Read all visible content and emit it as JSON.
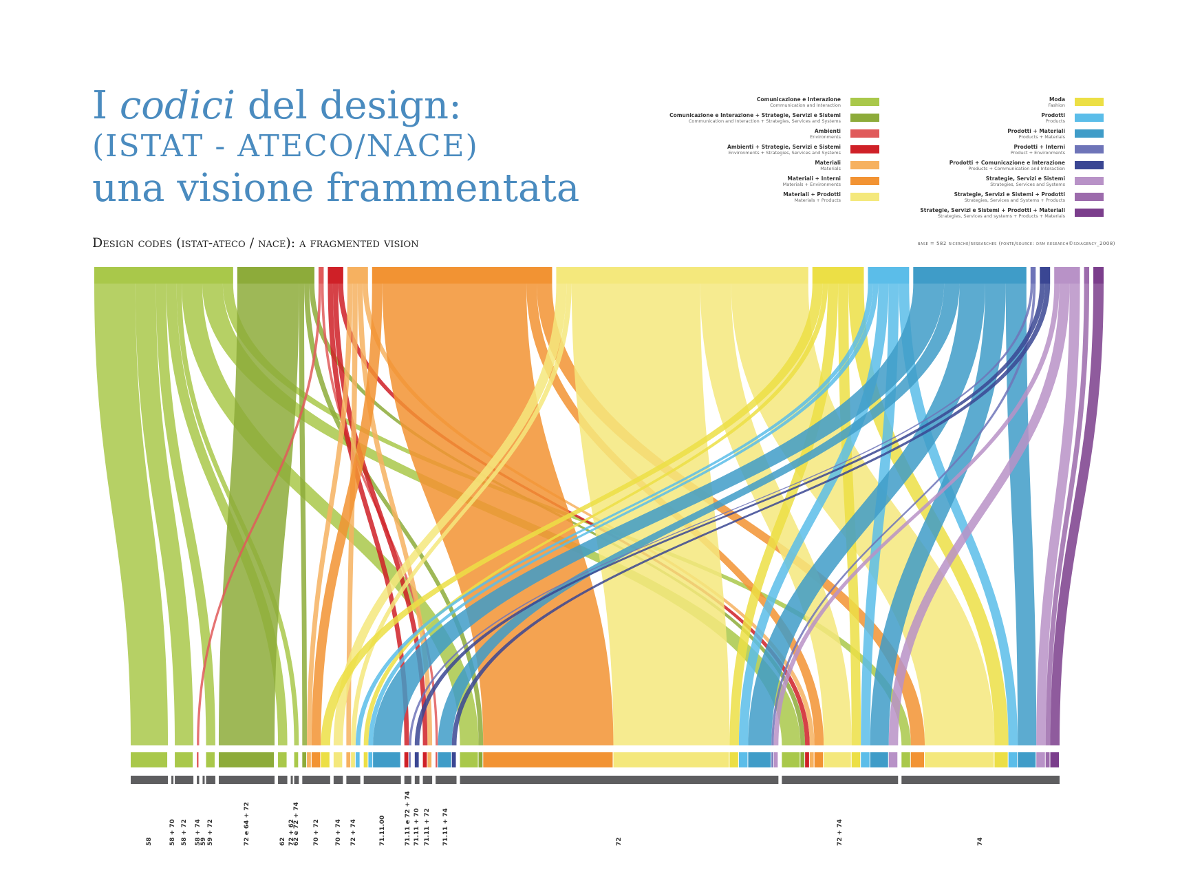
{
  "title": {
    "line1_pre": "I ",
    "line1_em": "codici",
    "line1_post": " del design:",
    "line2": "(ISTAT - ATECO/NACE)",
    "line3": "una visione frammentata"
  },
  "subtitle": "Design codes (istat-ateco / nace): a fragmented vision",
  "source": "base = 582 ricerche/researches (fonte/source: drm research©sdiagency_2008)",
  "legend": {
    "left": [
      {
        "it": "Comunicazione e Interazione",
        "en": "Communication and Interaction",
        "color": "#a9c84a"
      },
      {
        "it": "Comunicazione e Interazione + Strategie, Servizi e Sistemi",
        "en": "Communication and Interaction + Strategies, Services and Systems",
        "color": "#8dab3a"
      },
      {
        "it": "Ambienti",
        "en": "Environments",
        "color": "#e05a5a"
      },
      {
        "it": "Ambienti + Strategie, Servizi e Sistemi",
        "en": "Environments + Strategies, Services and Systems",
        "color": "#cf2027"
      },
      {
        "it": "Materiali",
        "en": "Materials",
        "color": "#f6b160"
      },
      {
        "it": "Materiali + Interni",
        "en": "Materials + Environments",
        "color": "#f29333"
      },
      {
        "it": "Materiali + Prodotti",
        "en": "Materials + Products",
        "color": "#f4e87c"
      }
    ],
    "right": [
      {
        "it": "Moda",
        "en": "Fashion",
        "color": "#ecdf45"
      },
      {
        "it": "Prodotti",
        "en": "Products",
        "color": "#5bbde9"
      },
      {
        "it": "Prodotti + Materiali",
        "en": "Products + Materials",
        "color": "#3f9cc8"
      },
      {
        "it": "Prodotti + Interni",
        "en": "Product + Environments",
        "color": "#6e74b8"
      },
      {
        "it": "Prodotti + Comunicazione e Interazione",
        "en": "Products + Communication and Interaction",
        "color": "#3a4693"
      },
      {
        "it": "Strategie, Servizi e Sistemi",
        "en": "Strategies, Services and Systems",
        "color": "#b892c7"
      },
      {
        "it": "Strategie, Servizi e Sistemi + Prodotti",
        "en": "Strategies, Services and Systems + Products",
        "color": "#9c6bac"
      },
      {
        "it": "Strategie, Servizi e Sistemi + Prodotti + Materiali",
        "en": "Strategies, Services and systems + Products + Materials",
        "color": "#7b3e8c"
      }
    ]
  },
  "codes": [
    "58",
    "58 + 70",
    "58 + 72",
    "58 + 74",
    "59",
    "59 + 72",
    "72 e 64 + 72",
    "62",
    "72 + 62",
    "62 e 72 + 74",
    "70 + 72",
    "70 + 74",
    "72 + 74",
    "71.11.00",
    "71.11 e 72 + 74",
    "71.11 + 70",
    "71.11 + 72",
    "71.11 + 74",
    "72",
    "72 + 74",
    "74"
  ],
  "chart_data": {
    "type": "flow",
    "total_researches": 582,
    "sources": [
      {
        "name": "Comunicazione e Interazione",
        "color": "#a9c84a"
      },
      {
        "name": "Comunicazione e Interazione + Strategie, Servizi e Sistemi",
        "color": "#8dab3a"
      },
      {
        "name": "Ambienti",
        "color": "#e05a5a"
      },
      {
        "name": "Ambienti + Strategie, Servizi e Sistemi",
        "color": "#cf2027"
      },
      {
        "name": "Materiali",
        "color": "#f6b160"
      },
      {
        "name": "Materiali + Interni",
        "color": "#f29333"
      },
      {
        "name": "Materiali + Prodotti",
        "color": "#f4e87c"
      },
      {
        "name": "Moda",
        "color": "#ecdf45"
      },
      {
        "name": "Prodotti",
        "color": "#5bbde9"
      },
      {
        "name": "Prodotti + Materiali",
        "color": "#3f9cc8"
      },
      {
        "name": "Prodotti + Interni",
        "color": "#6e74b8"
      },
      {
        "name": "Prodotti + Comunicazione e Interazione",
        "color": "#3a4693"
      },
      {
        "name": "Strategie, Servizi e Sistemi",
        "color": "#b892c7"
      },
      {
        "name": "Strategie, Servizi e Sistemi + Prodotti",
        "color": "#9c6bac"
      },
      {
        "name": "Strategie, Servizi e Sistemi + Prodotti + Materiali",
        "color": "#7b3e8c"
      }
    ],
    "source_sizes": [
      27,
      15,
      1,
      3,
      4,
      35,
      49,
      10,
      8,
      22,
      1,
      2,
      5,
      1,
      2
    ],
    "targets": [
      "58",
      "58 + 70",
      "58 + 72",
      "58 + 74",
      "59",
      "59 + 72",
      "72 e 64 + 72",
      "62",
      "72 + 62",
      "62 e 72 + 74",
      "70 + 72",
      "70 + 74",
      "72 + 74",
      "71.11.00",
      "71.11 e 72 + 74",
      "71.11 + 70",
      "71.11 + 72",
      "71.11 + 74",
      "72",
      "72 + 74",
      "74"
    ],
    "flows": [
      [
        0,
        0,
        8
      ],
      [
        0,
        2,
        4
      ],
      [
        0,
        5,
        2
      ],
      [
        0,
        7,
        2
      ],
      [
        0,
        9,
        1
      ],
      [
        0,
        18,
        4
      ],
      [
        0,
        19,
        4
      ],
      [
        0,
        20,
        2
      ],
      [
        1,
        6,
        12
      ],
      [
        1,
        10,
        1
      ],
      [
        1,
        18,
        1
      ],
      [
        1,
        19,
        1
      ],
      [
        2,
        3,
        0.5
      ],
      [
        2,
        17,
        0.5
      ],
      [
        3,
        14,
        1
      ],
      [
        3,
        16,
        1
      ],
      [
        3,
        19,
        1
      ],
      [
        4,
        10,
        1
      ],
      [
        4,
        12,
        1
      ],
      [
        4,
        16,
        1
      ],
      [
        4,
        19,
        1
      ],
      [
        5,
        10,
        2
      ],
      [
        5,
        18,
        28
      ],
      [
        5,
        19,
        2
      ],
      [
        5,
        20,
        3
      ],
      [
        6,
        11,
        2
      ],
      [
        6,
        12,
        1
      ],
      [
        6,
        18,
        25
      ],
      [
        6,
        19,
        6
      ],
      [
        6,
        20,
        15
      ],
      [
        7,
        10,
        2
      ],
      [
        7,
        13,
        1
      ],
      [
        7,
        18,
        2
      ],
      [
        7,
        19,
        2
      ],
      [
        7,
        20,
        3
      ],
      [
        8,
        12,
        1
      ],
      [
        8,
        13,
        1
      ],
      [
        8,
        18,
        2
      ],
      [
        8,
        19,
        2
      ],
      [
        8,
        20,
        2
      ],
      [
        9,
        13,
        6
      ],
      [
        9,
        17,
        3
      ],
      [
        9,
        18,
        5
      ],
      [
        9,
        19,
        4
      ],
      [
        9,
        20,
        4
      ],
      [
        10,
        14,
        0.5
      ],
      [
        10,
        18,
        0.5
      ],
      [
        11,
        15,
        1
      ],
      [
        11,
        17,
        1
      ],
      [
        12,
        18,
        1
      ],
      [
        12,
        19,
        2
      ],
      [
        12,
        20,
        2
      ],
      [
        13,
        20,
        1
      ],
      [
        14,
        20,
        2
      ]
    ]
  }
}
